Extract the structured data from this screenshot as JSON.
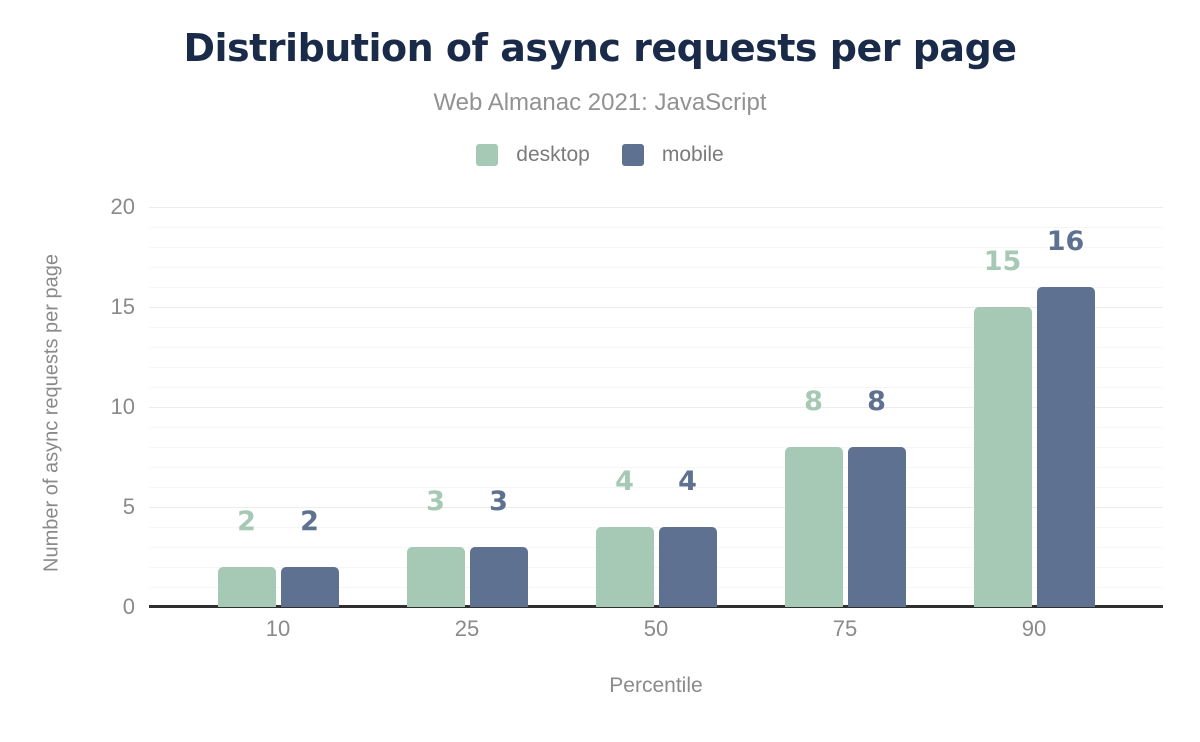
{
  "chart_data": {
    "type": "bar",
    "title": "Distribution of async requests per page",
    "subtitle": "Web Almanac 2021: JavaScript",
    "xlabel": "Percentile",
    "ylabel": "Number of async requests per page",
    "categories": [
      "10",
      "25",
      "50",
      "75",
      "90"
    ],
    "series": [
      {
        "name": "desktop",
        "color": "#a5c9b4",
        "values": [
          2,
          3,
          4,
          8,
          15
        ]
      },
      {
        "name": "mobile",
        "color": "#5e7190",
        "values": [
          2,
          3,
          4,
          8,
          16
        ]
      }
    ],
    "ylim": [
      0,
      20
    ],
    "yticks": [
      0,
      5,
      10,
      15,
      20
    ],
    "grid": {
      "minor_every": 1,
      "major_every": 5,
      "minor_color": "#f6f6f6",
      "major_color": "#ececec"
    },
    "legend_position": "top",
    "value_labels": true
  },
  "colors": {
    "background": "#ffffff",
    "title": "#1a2b49",
    "subtitle": "#929292",
    "axis_text": "#8a8a8a",
    "legend_text": "#7b7b7b",
    "baseline": "#2f2f2f"
  }
}
